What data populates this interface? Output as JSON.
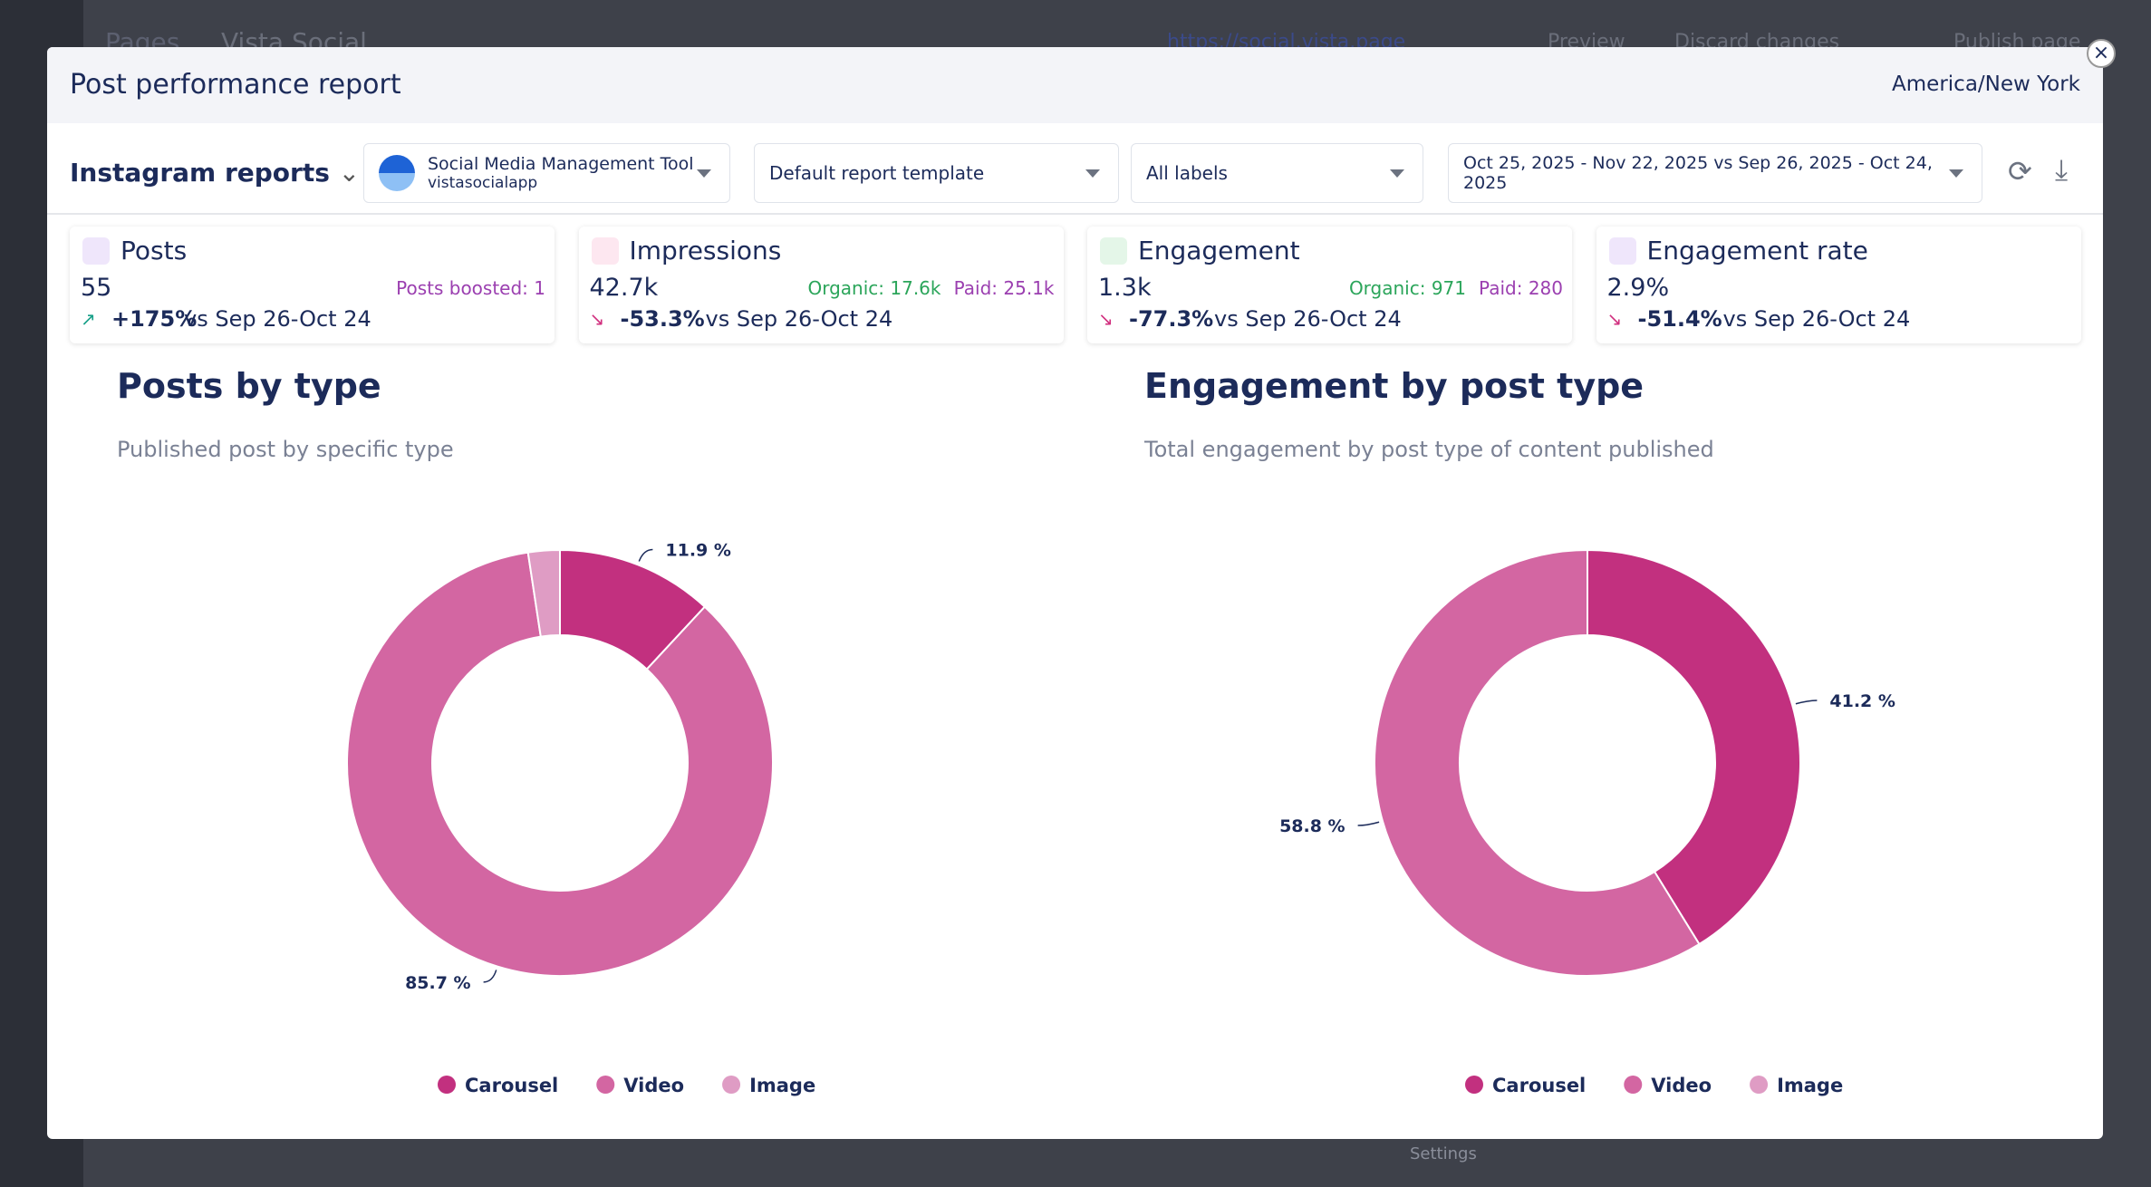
{
  "background": {
    "breadcrumb": "Pages",
    "site": "Vista Social",
    "url": "https://social.vista.page",
    "preview": "Preview",
    "discard": "Discard changes",
    "publish": "Publish page",
    "settings": "Settings"
  },
  "modal": {
    "title": "Post performance report",
    "timezone": "America/New York",
    "report": "Instagram reports",
    "profile": {
      "name": "Social Media Management Tool",
      "handle": "vistasocialapp"
    },
    "template": "Default report template",
    "labels": "All labels",
    "date_range": "Oct 25, 2025 - Nov 22, 2025 vs Sep 26, 2025 - Oct 24, 2025"
  },
  "metrics": [
    {
      "title": "Posts",
      "value": "55",
      "change": "+175%",
      "comparison": "vs Sep 26-Oct 24",
      "extra": [
        "Posts boosted: 1"
      ]
    },
    {
      "title": "Impressions",
      "value": "42.7k",
      "change": "-53.3%",
      "comparison": "vs Sep 26-Oct 24",
      "extra": [
        "Organic: 17.6k",
        "Paid: 25.1k"
      ]
    },
    {
      "title": "Engagement",
      "value": "1.3k",
      "change": "-77.3%",
      "comparison": "vs Sep 26-Oct 24",
      "extra": [
        "Organic: 971",
        "Paid: 280"
      ]
    },
    {
      "title": "Engagement rate",
      "value": "2.9%",
      "change": "-51.4%",
      "comparison": "vs Sep 26-Oct 24",
      "extra": []
    }
  ],
  "chart_data": [
    {
      "type": "pie",
      "title": "Posts by type",
      "subtitle": "Published post by specific type",
      "categories": [
        "Carousel",
        "Video",
        "Image"
      ],
      "values": [
        11.9,
        85.7,
        2.4
      ],
      "value_labels": [
        "11.9 %",
        "85.7 %",
        null
      ],
      "colors": [
        "#c2307f",
        "#d366a2",
        "#df9cc4"
      ]
    },
    {
      "type": "pie",
      "title": "Engagement by post type",
      "subtitle": "Total engagement by post type of content published",
      "categories": [
        "Carousel",
        "Video",
        "Image"
      ],
      "values": [
        41.2,
        58.8,
        0
      ],
      "value_labels": [
        "41.2 %",
        "58.8 %",
        null
      ],
      "colors": [
        "#c2307f",
        "#d366a2",
        "#df9cc4"
      ]
    }
  ]
}
